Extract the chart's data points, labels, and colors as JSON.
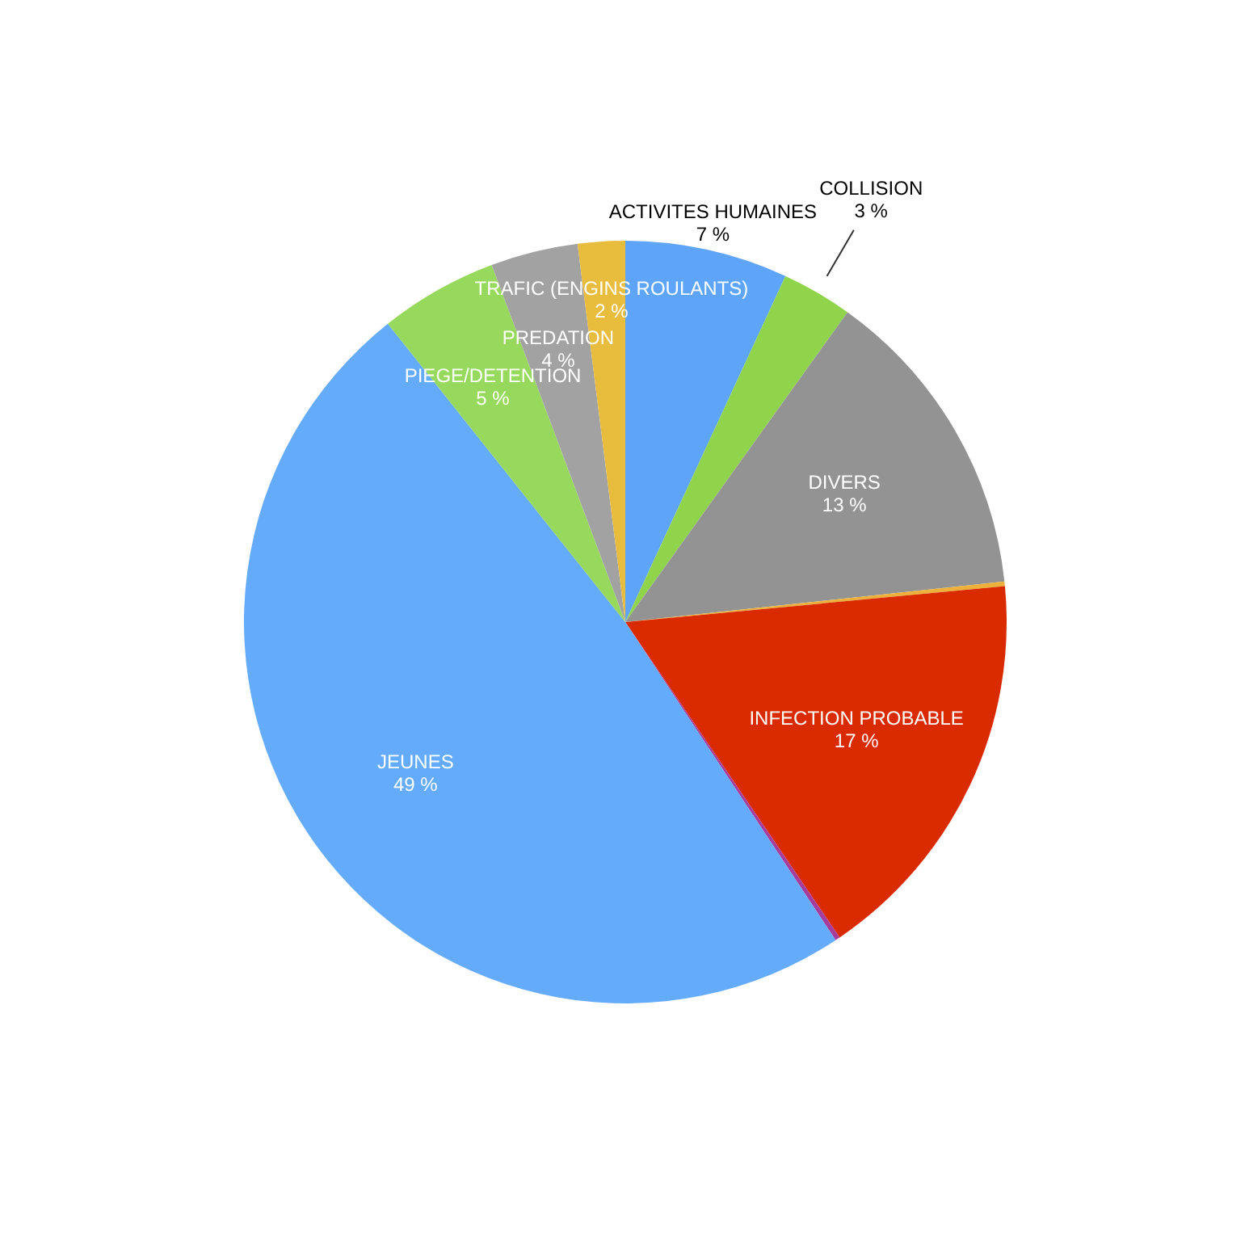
{
  "chart_data": {
    "type": "pie",
    "categories": [
      "ACTIVITES HUMAINES",
      "COLLISION",
      "DIVERS",
      null,
      "INFECTION PROBABLE",
      null,
      "JEUNES",
      "PIEGE/DETENTION",
      "PREDATION",
      "TRAFIC (ENGINS ROULANTS)"
    ],
    "values": [
      6.9,
      3.0,
      13.4,
      0.2,
      17.0,
      0.2,
      48.6,
      5.0,
      3.7,
      2.0
    ],
    "value_labels": [
      "7 %",
      "3 %",
      "13 %",
      null,
      "17 %",
      null,
      "49 %",
      "5 %",
      "4 %",
      "2 %"
    ],
    "colors": [
      "#5ea5fa",
      "#8fd44b",
      "#939393",
      "#edb13b",
      "#d92a00",
      "#a63d9e",
      "#65abfc",
      "#97d95c",
      "#a2a2a2",
      "#e8bd3e"
    ]
  }
}
